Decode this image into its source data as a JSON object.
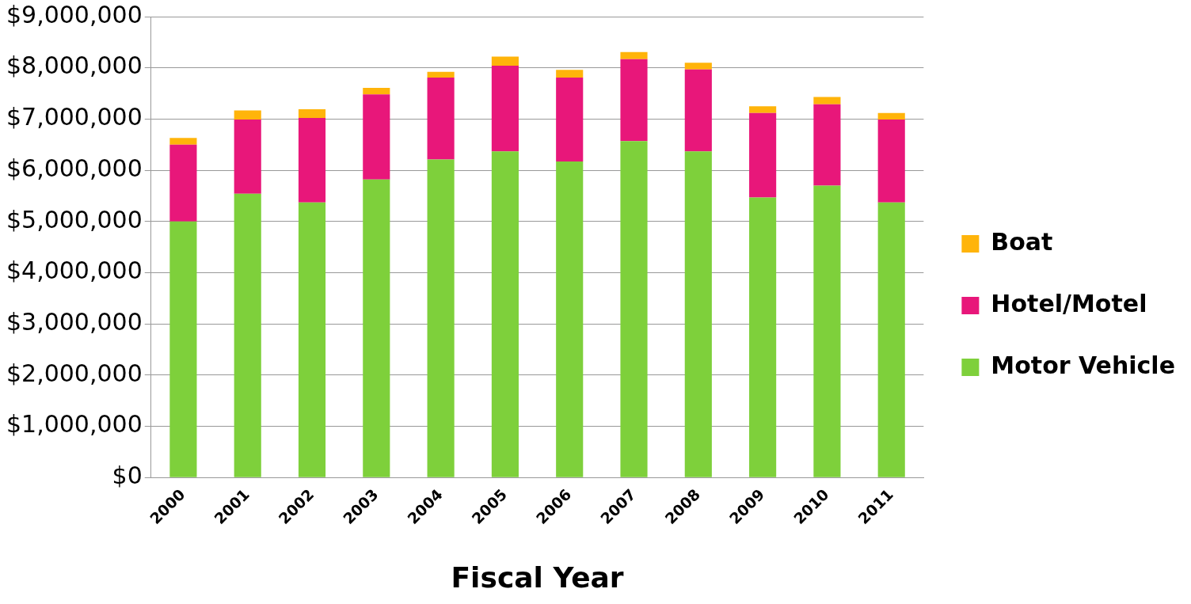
{
  "chart_data": {
    "type": "bar",
    "stacked": true,
    "xlabel": "Fiscal Year",
    "categories": [
      "2000",
      "2001",
      "2002",
      "2003",
      "2004",
      "2005",
      "2006",
      "2007",
      "2008",
      "2009",
      "2010",
      "2011"
    ],
    "series": [
      {
        "name": "Motor Vehicle",
        "color": "#7ed03b",
        "values": [
          5000000,
          5540000,
          5370000,
          5820000,
          6210000,
          6370000,
          6170000,
          6570000,
          6370000,
          5470000,
          5700000,
          5370000
        ]
      },
      {
        "name": "Hotel/Motel",
        "color": "#e8177a",
        "values": [
          1500000,
          1450000,
          1650000,
          1660000,
          1600000,
          1670000,
          1640000,
          1600000,
          1600000,
          1650000,
          1590000,
          1620000
        ]
      },
      {
        "name": "Boat",
        "color": "#ffb40a",
        "values": [
          130000,
          180000,
          170000,
          130000,
          110000,
          180000,
          150000,
          140000,
          130000,
          130000,
          140000,
          130000
        ]
      }
    ],
    "ylim": [
      0,
      9000000
    ],
    "yticks": [
      {
        "value": 0,
        "label": "$0"
      },
      {
        "value": 1000000,
        "label": "$1,000,000"
      },
      {
        "value": 2000000,
        "label": "$2,000,000"
      },
      {
        "value": 3000000,
        "label": "$3,000,000"
      },
      {
        "value": 4000000,
        "label": "$4,000,000"
      },
      {
        "value": 5000000,
        "label": "$5,000,000"
      },
      {
        "value": 6000000,
        "label": "$6,000,000"
      },
      {
        "value": 7000000,
        "label": "$7,000,000"
      },
      {
        "value": 8000000,
        "label": "$8,000,000"
      },
      {
        "value": 9000000,
        "label": "$9,000,000"
      }
    ],
    "grid": "y",
    "legend": "right"
  }
}
